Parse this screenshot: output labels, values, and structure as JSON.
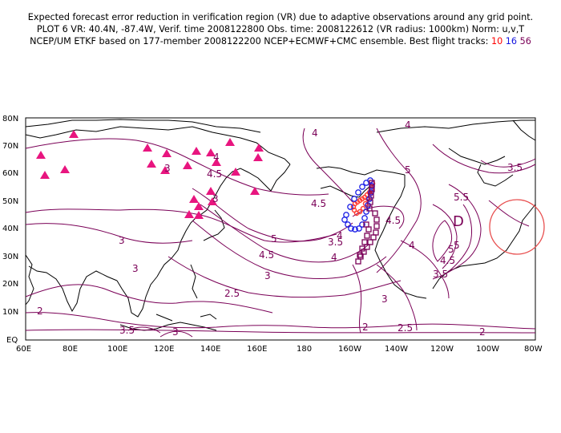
{
  "header": {
    "line1": "Expected forecast error reduction in verification region (VR) due to adaptive observations around any grid point.",
    "line2": "PLOT 6 VR: 40.4N, -87.4W, Verif. time 2008122800 Obs. time: 2008122612 (VR radius: 1000km) Norm: u,v,T",
    "line3_prefix": "NCEP/UM ETKF based on 177-member 2008122200 NCEP+ECMWF+CMC ensemble. Best flight tracks:",
    "track_red": "10",
    "track_blue": "16",
    "track_purple": "56"
  },
  "axes": {
    "lat_labels": [
      "80N",
      "70N",
      "60N",
      "50N",
      "40N",
      "30N",
      "20N",
      "10N",
      "EQ"
    ],
    "lon_labels": [
      "60E",
      "80E",
      "100E",
      "120E",
      "140E",
      "160E",
      "180",
      "160W",
      "140W",
      "120W",
      "100W",
      "80W"
    ]
  },
  "contour_labels": [
    "4",
    "4",
    "3.5",
    "3",
    "4",
    "4.5",
    "3",
    "4.5",
    "5",
    "5",
    "4.5",
    "3",
    "2.5",
    "3",
    "3",
    "2",
    "3.5",
    "3",
    "2",
    "2.5",
    "2",
    "4.5",
    "3.5",
    "4",
    "3",
    "4",
    "5",
    "5.5",
    "3.5",
    "4.5",
    "5",
    "4"
  ],
  "colors": {
    "contour": "#7a0057",
    "triangles": "#e8157f",
    "track_red": "#ff3b30",
    "track_blue": "#1e22e6",
    "track_purple": "#7a0057",
    "verification_circle": "#e85050"
  }
}
